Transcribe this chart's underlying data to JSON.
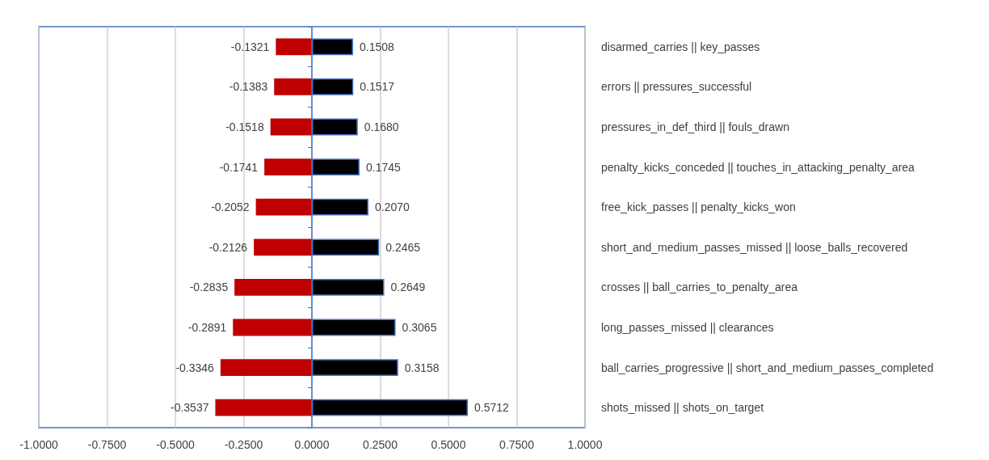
{
  "chart_data": {
    "type": "bar",
    "orientation": "horizontal",
    "stacked": true,
    "grid": "x",
    "categories": [
      "disarmed_carries || key_passes",
      "errors || pressures_successful",
      "pressures_in_def_third || fouls_drawn",
      "penalty_kicks_conceded || touches_in_attacking_penalty_area",
      "free_kick_passes || penalty_kicks_won",
      "short_and_medium_passes_missed || loose_balls_recovered",
      "crosses || ball_carries_to_penalty_area",
      "long_passes_missed || clearances",
      "ball_carries_progressive || short_and_medium_passes_completed",
      "shots_missed || shots_on_target"
    ],
    "series": [
      {
        "color": "#c00000",
        "values": [
          -0.1321,
          -0.1383,
          -0.1518,
          -0.1741,
          -0.2052,
          -0.2126,
          -0.2835,
          -0.2891,
          -0.3346,
          -0.3537
        ],
        "value_labels": [
          "-0.1321",
          "-0.1383",
          "-0.1518",
          "-0.1741",
          "-0.2052",
          "-0.2126",
          "-0.2835",
          "-0.2891",
          "-0.3346",
          "-0.3537"
        ]
      },
      {
        "color": "#000000",
        "values": [
          0.1508,
          0.1517,
          0.168,
          0.1745,
          0.207,
          0.2465,
          0.2649,
          0.3065,
          0.3158,
          0.5712
        ],
        "value_labels": [
          "0.1508",
          "0.1517",
          "0.1680",
          "0.1745",
          "0.2070",
          "0.2465",
          "0.2649",
          "0.3065",
          "0.3158",
          "0.5712"
        ]
      }
    ],
    "ref_lines": [
      {
        "axis": "x",
        "value": 0,
        "color": "#4472c4"
      }
    ],
    "xlim": [
      -1,
      1
    ],
    "xticks": [
      {
        "value": -1,
        "label": "-1.0000"
      },
      {
        "value": -0.75,
        "label": "-0.7500"
      },
      {
        "value": -0.5,
        "label": "-0.5000"
      },
      {
        "value": -0.25,
        "label": "-0.2500"
      },
      {
        "value": 0,
        "label": "0.0000"
      },
      {
        "value": 0.25,
        "label": "0.2500"
      },
      {
        "value": 0.5,
        "label": "0.5000"
      },
      {
        "value": 0.75,
        "label": "0.7500"
      },
      {
        "value": 1,
        "label": "1.0000"
      }
    ]
  }
}
